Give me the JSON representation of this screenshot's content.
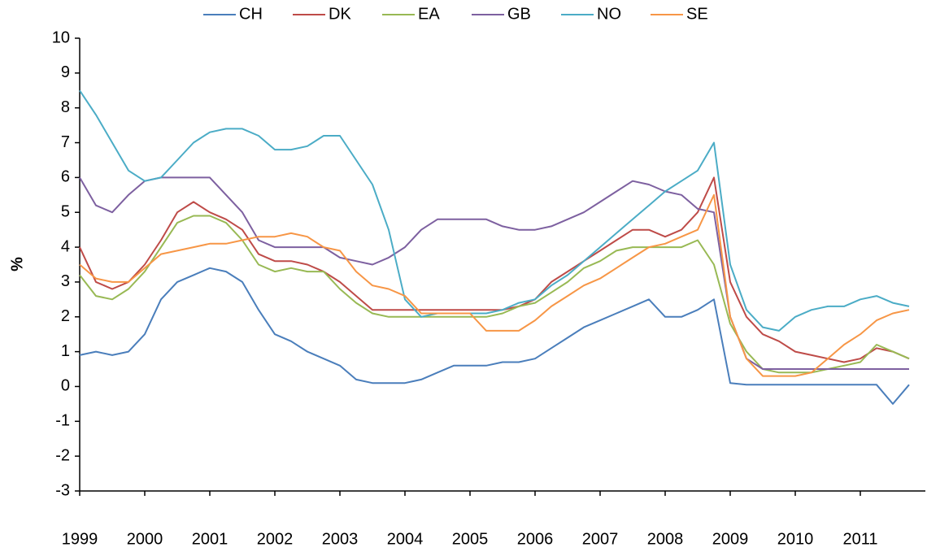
{
  "chart_data": {
    "type": "line",
    "y_label": "%",
    "x": [
      1999,
      1999.25,
      1999.5,
      1999.75,
      2000,
      2000.25,
      2000.5,
      2000.75,
      2001,
      2001.25,
      2001.5,
      2001.75,
      2002,
      2002.25,
      2002.5,
      2002.75,
      2003,
      2003.25,
      2003.5,
      2003.75,
      2004,
      2004.25,
      2004.5,
      2004.75,
      2005,
      2005.25,
      2005.5,
      2005.75,
      2006,
      2006.25,
      2006.5,
      2006.75,
      2007,
      2007.25,
      2007.5,
      2007.75,
      2008,
      2008.25,
      2008.5,
      2008.75,
      2009,
      2009.25,
      2009.5,
      2009.75,
      2010,
      2010.25,
      2010.5,
      2010.75,
      2011,
      2011.25,
      2011.5,
      2011.75
    ],
    "series": [
      {
        "name": "CH",
        "color": "#4a7ebb",
        "values": [
          0.9,
          1.0,
          0.9,
          1.0,
          1.5,
          2.5,
          3.0,
          3.2,
          3.4,
          3.3,
          3.0,
          2.2,
          1.5,
          1.3,
          1.0,
          0.8,
          0.6,
          0.2,
          0.1,
          0.1,
          0.1,
          0.2,
          0.4,
          0.6,
          0.6,
          0.6,
          0.7,
          0.7,
          0.8,
          1.1,
          1.4,
          1.7,
          1.9,
          2.1,
          2.3,
          2.5,
          2.0,
          2.0,
          2.2,
          2.5,
          0.1,
          0.05,
          0.05,
          0.05,
          0.05,
          0.05,
          0.05,
          0.05,
          0.05,
          0.05,
          -0.5,
          0.05
        ]
      },
      {
        "name": "DK",
        "color": "#be4b48",
        "values": [
          4.0,
          3.0,
          2.8,
          3.0,
          3.5,
          4.2,
          5.0,
          5.3,
          5.0,
          4.8,
          4.5,
          3.8,
          3.6,
          3.6,
          3.5,
          3.3,
          3.0,
          2.6,
          2.2,
          2.2,
          2.2,
          2.2,
          2.2,
          2.2,
          2.2,
          2.2,
          2.2,
          2.3,
          2.5,
          3.0,
          3.3,
          3.6,
          3.9,
          4.2,
          4.5,
          4.5,
          4.3,
          4.5,
          5.0,
          6.0,
          3.0,
          2.0,
          1.5,
          1.3,
          1.0,
          0.9,
          0.8,
          0.7,
          0.8,
          1.1,
          1.0,
          0.8
        ]
      },
      {
        "name": "EA",
        "color": "#98b954",
        "values": [
          3.2,
          2.6,
          2.5,
          2.8,
          3.3,
          4.0,
          4.7,
          4.9,
          4.9,
          4.7,
          4.2,
          3.5,
          3.3,
          3.4,
          3.3,
          3.3,
          2.8,
          2.4,
          2.1,
          2.0,
          2.0,
          2.0,
          2.0,
          2.0,
          2.0,
          2.0,
          2.1,
          2.3,
          2.4,
          2.7,
          3.0,
          3.4,
          3.6,
          3.9,
          4.0,
          4.0,
          4.0,
          4.0,
          4.2,
          3.5,
          1.8,
          1.0,
          0.5,
          0.4,
          0.4,
          0.4,
          0.5,
          0.6,
          0.7,
          1.2,
          1.0,
          0.8
        ]
      },
      {
        "name": "GB",
        "color": "#7d60a0",
        "values": [
          6.0,
          5.2,
          5.0,
          5.5,
          5.9,
          6.0,
          6.0,
          6.0,
          6.0,
          5.5,
          5.0,
          4.2,
          4.0,
          4.0,
          4.0,
          4.0,
          3.7,
          3.6,
          3.5,
          3.7,
          4.0,
          4.5,
          4.8,
          4.8,
          4.8,
          4.8,
          4.6,
          4.5,
          4.5,
          4.6,
          4.8,
          5.0,
          5.3,
          5.6,
          5.9,
          5.8,
          5.6,
          5.5,
          5.1,
          5.0,
          2.0,
          0.8,
          0.5,
          0.5,
          0.5,
          0.5,
          0.5,
          0.5,
          0.5,
          0.5,
          0.5,
          0.5
        ]
      },
      {
        "name": "NO",
        "color": "#4bacc6",
        "values": [
          8.5,
          7.8,
          7.0,
          6.2,
          5.9,
          6.0,
          6.5,
          7.0,
          7.3,
          7.4,
          7.4,
          7.2,
          6.8,
          6.8,
          6.9,
          7.2,
          7.2,
          6.5,
          5.8,
          4.5,
          2.5,
          2.0,
          2.1,
          2.1,
          2.1,
          2.1,
          2.2,
          2.4,
          2.5,
          2.9,
          3.2,
          3.6,
          4.0,
          4.4,
          4.8,
          5.2,
          5.6,
          5.9,
          6.2,
          7.0,
          3.5,
          2.2,
          1.7,
          1.6,
          2.0,
          2.2,
          2.3,
          2.3,
          2.5,
          2.6,
          2.4,
          2.3
        ]
      },
      {
        "name": "SE",
        "color": "#f79646",
        "values": [
          3.5,
          3.1,
          3.0,
          3.0,
          3.4,
          3.8,
          3.9,
          4.0,
          4.1,
          4.1,
          4.2,
          4.3,
          4.3,
          4.4,
          4.3,
          4.0,
          3.9,
          3.3,
          2.9,
          2.8,
          2.6,
          2.1,
          2.1,
          2.1,
          2.1,
          1.6,
          1.6,
          1.6,
          1.9,
          2.3,
          2.6,
          2.9,
          3.1,
          3.4,
          3.7,
          4.0,
          4.1,
          4.3,
          4.5,
          5.5,
          2.0,
          0.8,
          0.3,
          0.3,
          0.3,
          0.4,
          0.8,
          1.2,
          1.5,
          1.9,
          2.1,
          2.2
        ]
      }
    ],
    "xlim": [
      1999,
      2012
    ],
    "xticks": [
      1999,
      2000,
      2001,
      2002,
      2003,
      2004,
      2005,
      2006,
      2007,
      2008,
      2009,
      2010,
      2011
    ],
    "ylim": [
      -3,
      10
    ],
    "yticks": [
      -3,
      -2,
      -1,
      0,
      1,
      2,
      3,
      4,
      5,
      6,
      7,
      8,
      9,
      10
    ],
    "grid": false,
    "legend": "top"
  }
}
